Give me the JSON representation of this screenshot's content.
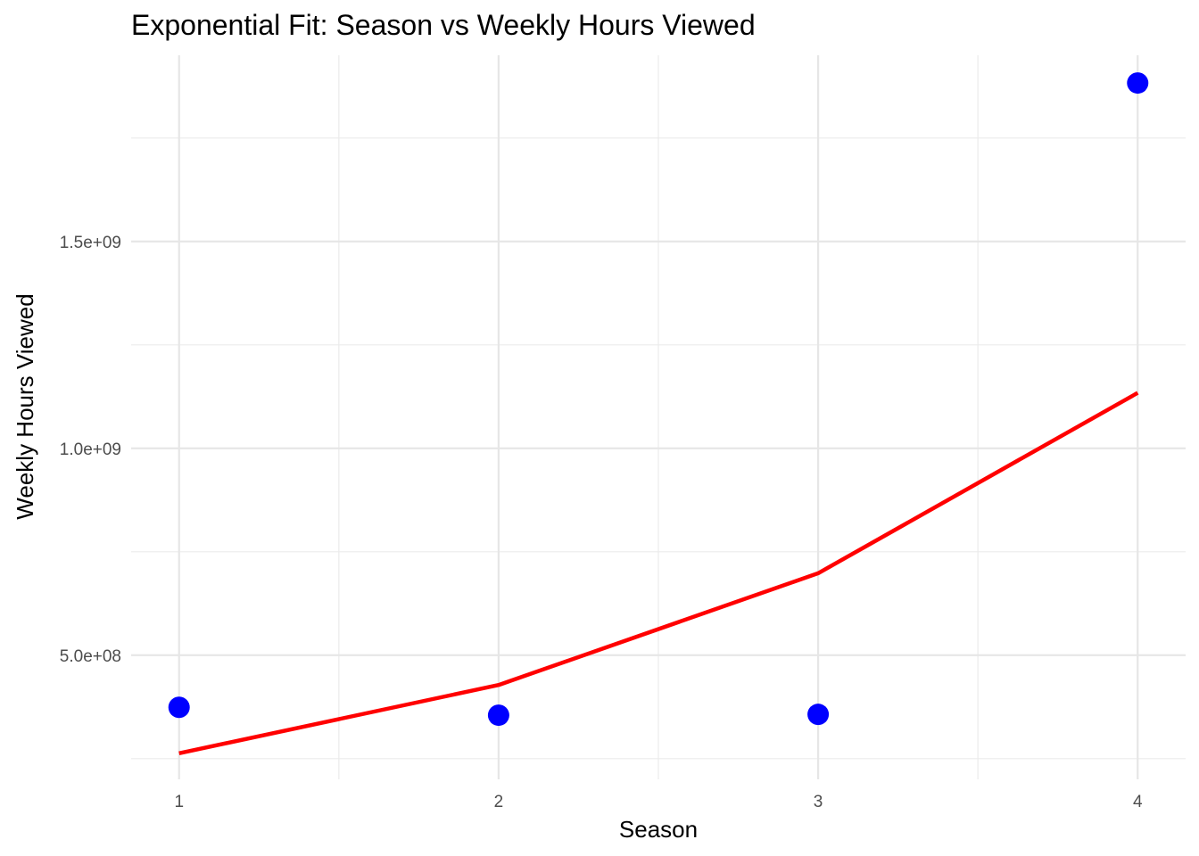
{
  "chart_data": {
    "type": "scatter",
    "title": "Exponential Fit: Season vs Weekly Hours Viewed",
    "xlabel": "Season",
    "ylabel": "Weekly Hours Viewed",
    "xlim": [
      0.85,
      4.15
    ],
    "ylim": [
      200000000,
      1950000000
    ],
    "x_ticks": [
      1,
      2,
      3,
      4
    ],
    "x_tick_labels": [
      "1",
      "2",
      "3",
      "4"
    ],
    "x_minor_ticks": [
      1.5,
      2.5,
      3.5
    ],
    "y_ticks": [
      500000000,
      1000000000,
      1500000000
    ],
    "y_tick_labels": [
      "5.0e+08",
      "1.0e+09",
      "1.5e+09"
    ],
    "y_minor_ticks": [
      250000000,
      750000000,
      1250000000,
      1750000000
    ],
    "grid": true,
    "legend": "none",
    "series": [
      {
        "kind": "points",
        "color": "#0000ff",
        "x": [
          1,
          2,
          3,
          4
        ],
        "y": [
          374000000,
          355000000,
          357000000,
          1883000000
        ]
      },
      {
        "kind": "line",
        "color": "#ff0000",
        "x": [
          1,
          2,
          3,
          4
        ],
        "y": [
          263000000,
          428000000,
          698000000,
          1134000000
        ]
      }
    ]
  }
}
